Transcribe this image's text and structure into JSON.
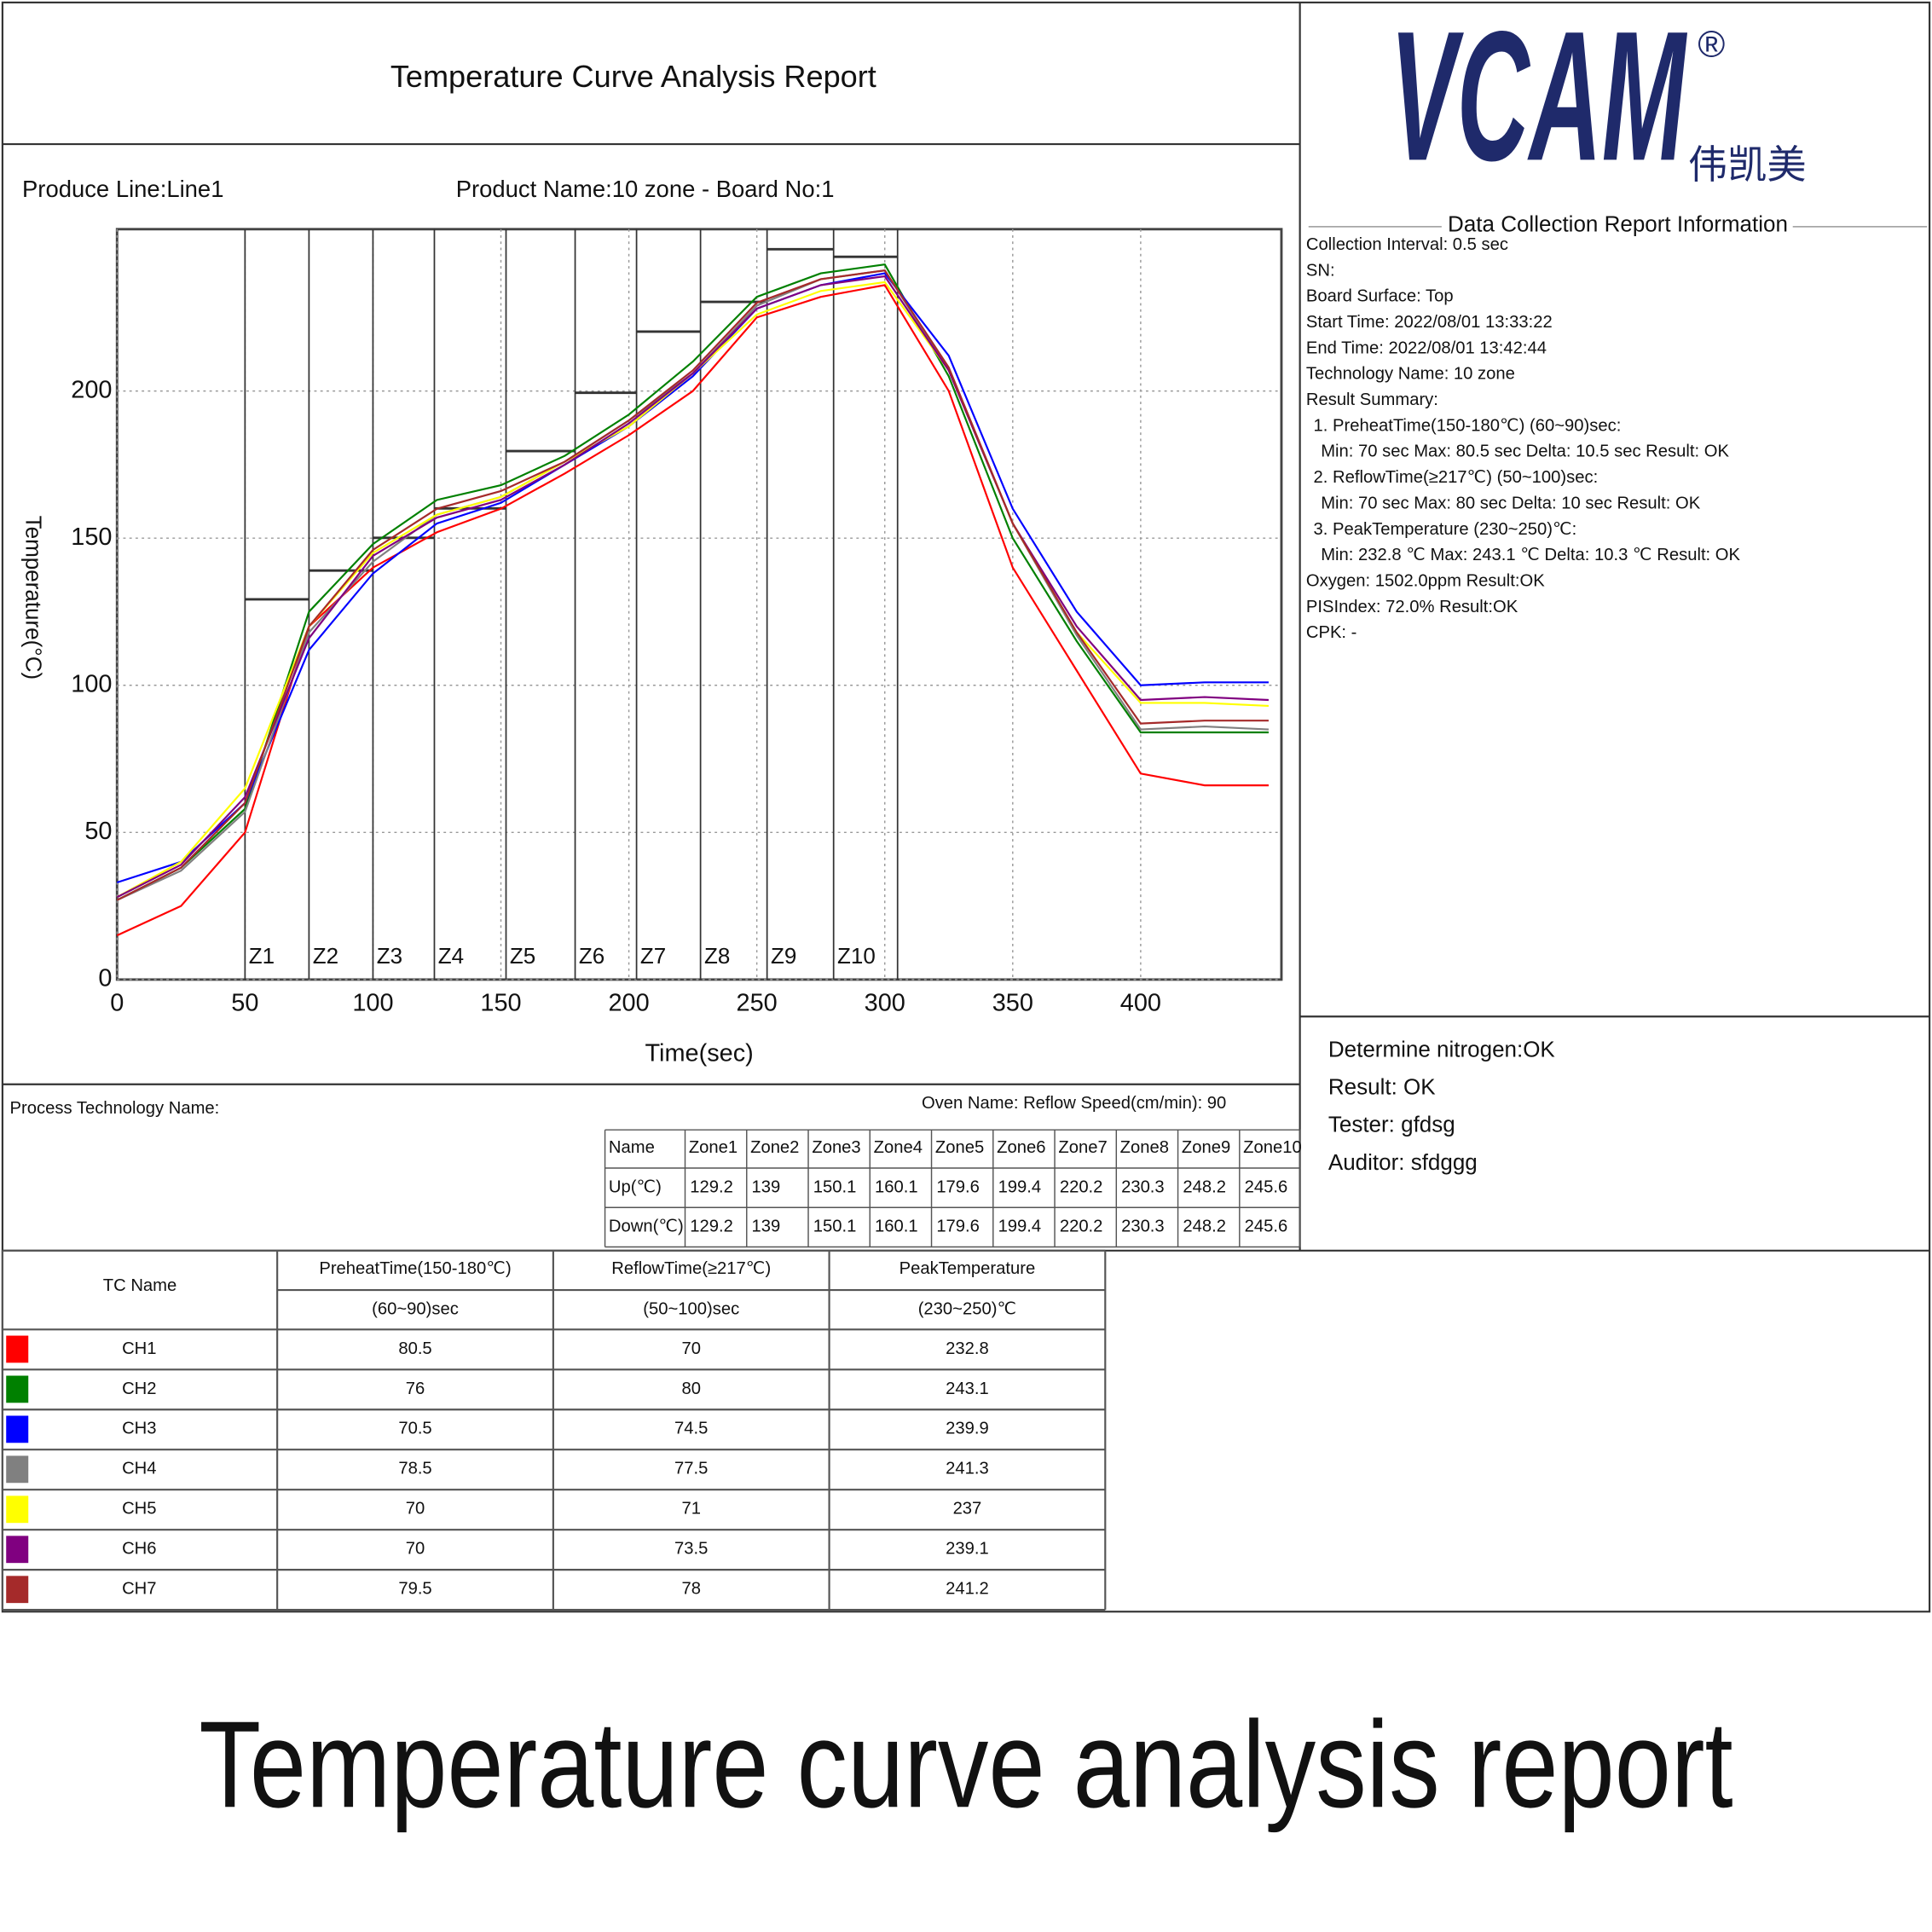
{
  "header": {
    "title": "Temperature Curve Analysis Report",
    "produce_line": "Produce Line:Line1",
    "product_name": "Product Name:10 zone - Board No:1"
  },
  "logo": {
    "brand": "VCAM",
    "registered": "®",
    "chinese": "伟凯美"
  },
  "info": {
    "title": "Data Collection Report Information",
    "lines": [
      "Collection Interval: 0.5 sec",
      "SN:",
      "Board Surface: Top",
      "Start Time: 2022/08/01 13:33:22",
      "End Time: 2022/08/01 13:42:44",
      "Technology Name: 10 zone",
      "Result Summary:",
      "1. PreheatTime(150-180℃) (60~90)sec:",
      "Min:  70 sec  Max:  80.5 sec  Delta: 10.5 sec  Result:  OK",
      "2. ReflowTime(≥217℃) (50~100)sec:",
      "Min:  70 sec  Max:  80 sec  Delta: 10 sec  Result:  OK",
      "3. PeakTemperature  (230~250)℃:",
      "Min:  232.8 ℃  Max:  243.1 ℃  Delta:  10.3 ℃  Result:  OK",
      "Oxygen: 1502.0ppm  Result:OK",
      "PISIndex: 72.0%  Result:OK",
      "CPK: -"
    ]
  },
  "chart_data": {
    "type": "line",
    "x_label": "Time(sec)",
    "y_label": "Temperature(°C)",
    "x": [
      0,
      25,
      50,
      75,
      100,
      125,
      150,
      175,
      200,
      225,
      250,
      275,
      300,
      325,
      350,
      375,
      400,
      425,
      450
    ],
    "xlim": [
      0,
      455
    ],
    "ylim": [
      0,
      255
    ],
    "xticks": [
      0,
      50,
      100,
      150,
      200,
      250,
      300,
      350,
      400
    ],
    "yticks": [
      0,
      50,
      100,
      150,
      200
    ],
    "grid": true,
    "zone_labels": [
      "Z1",
      "Z2",
      "Z3",
      "Z4",
      "Z5",
      "Z6",
      "Z7",
      "Z8",
      "Z9",
      "Z10"
    ],
    "zone_x": [
      50,
      75,
      100,
      124,
      152,
      179,
      203,
      228,
      254,
      280,
      305
    ],
    "series": [
      {
        "name": "CH1",
        "color": "#ff0000",
        "values": [
          15,
          25,
          50,
          120,
          140,
          152,
          160,
          172,
          185,
          200,
          225,
          232,
          236,
          200,
          140,
          105,
          70,
          66,
          66
        ]
      },
      {
        "name": "CH2",
        "color": "#008000",
        "values": [
          27,
          38,
          58,
          125,
          148,
          163,
          168,
          178,
          192,
          210,
          232,
          240,
          243,
          205,
          150,
          115,
          84,
          84,
          84
        ]
      },
      {
        "name": "CH3",
        "color": "#0000ff",
        "values": [
          33,
          40,
          60,
          112,
          138,
          155,
          162,
          175,
          188,
          205,
          228,
          236,
          240,
          212,
          160,
          125,
          100,
          101,
          101
        ]
      },
      {
        "name": "CH4",
        "color": "#808080",
        "values": [
          27,
          37,
          57,
          118,
          142,
          158,
          164,
          176,
          190,
          206,
          229,
          238,
          241,
          207,
          155,
          117,
          85,
          86,
          85
        ]
      },
      {
        "name": "CH5",
        "color": "#ffff00",
        "values": [
          28,
          40,
          65,
          120,
          145,
          158,
          164,
          176,
          188,
          206,
          226,
          234,
          237,
          207,
          155,
          118,
          94,
          94,
          93
        ]
      },
      {
        "name": "CH6",
        "color": "#800080",
        "values": [
          28,
          39,
          62,
          116,
          144,
          157,
          163,
          175,
          189,
          206,
          228,
          236,
          239,
          207,
          155,
          120,
          95,
          96,
          95
        ]
      },
      {
        "name": "CH7",
        "color": "#a52a2a",
        "values": [
          27,
          38,
          60,
          120,
          146,
          160,
          166,
          176,
          190,
          207,
          230,
          238,
          241,
          208,
          155,
          118,
          87,
          88,
          88
        ]
      }
    ]
  },
  "oven": {
    "process": "Process Technology Name:",
    "oven": "Oven Name: Reflow    Speed(cm/min):  90"
  },
  "zone_table": {
    "header": [
      "Name",
      "Zone1",
      "Zone2",
      "Zone3",
      "Zone4",
      "Zone5",
      "Zone6",
      "Zone7",
      "Zone8",
      "Zone9",
      "Zone10"
    ],
    "rows": [
      {
        "label": "Up(℃)",
        "values": [
          129.2,
          139,
          150.1,
          160.1,
          179.6,
          199.4,
          220.2,
          230.3,
          248.2,
          245.6
        ]
      },
      {
        "label": "Down(℃)",
        "values": [
          129.2,
          139,
          150.1,
          160.1,
          179.6,
          199.4,
          220.2,
          230.3,
          248.2,
          245.6
        ]
      }
    ]
  },
  "status": [
    "Determine nitrogen:OK",
    "Result: OK",
    "Tester:  gfdsg",
    "Auditor:  sfdggg"
  ],
  "tc_table": {
    "header": [
      "TC Name",
      "PreheatTime(150-180℃)",
      "ReflowTime(≥217℃)",
      "PeakTemperature"
    ],
    "subheader": [
      "(60~90)sec",
      "(50~100)sec",
      "(230~250)℃"
    ],
    "rows": [
      {
        "preheat": 80.5,
        "reflow": 70,
        "peak": 232.8
      },
      {
        "preheat": 76,
        "reflow": 80,
        "peak": 243.1
      },
      {
        "preheat": 70.5,
        "reflow": 74.5,
        "peak": 239.9
      },
      {
        "preheat": 78.5,
        "reflow": 77.5,
        "peak": 241.3
      },
      {
        "preheat": 70,
        "reflow": 71,
        "peak": 237
      },
      {
        "preheat": 70,
        "reflow": 73.5,
        "peak": 239.1
      },
      {
        "preheat": 79.5,
        "reflow": 78,
        "peak": 241.2
      }
    ]
  },
  "caption": "Temperature curve analysis report"
}
